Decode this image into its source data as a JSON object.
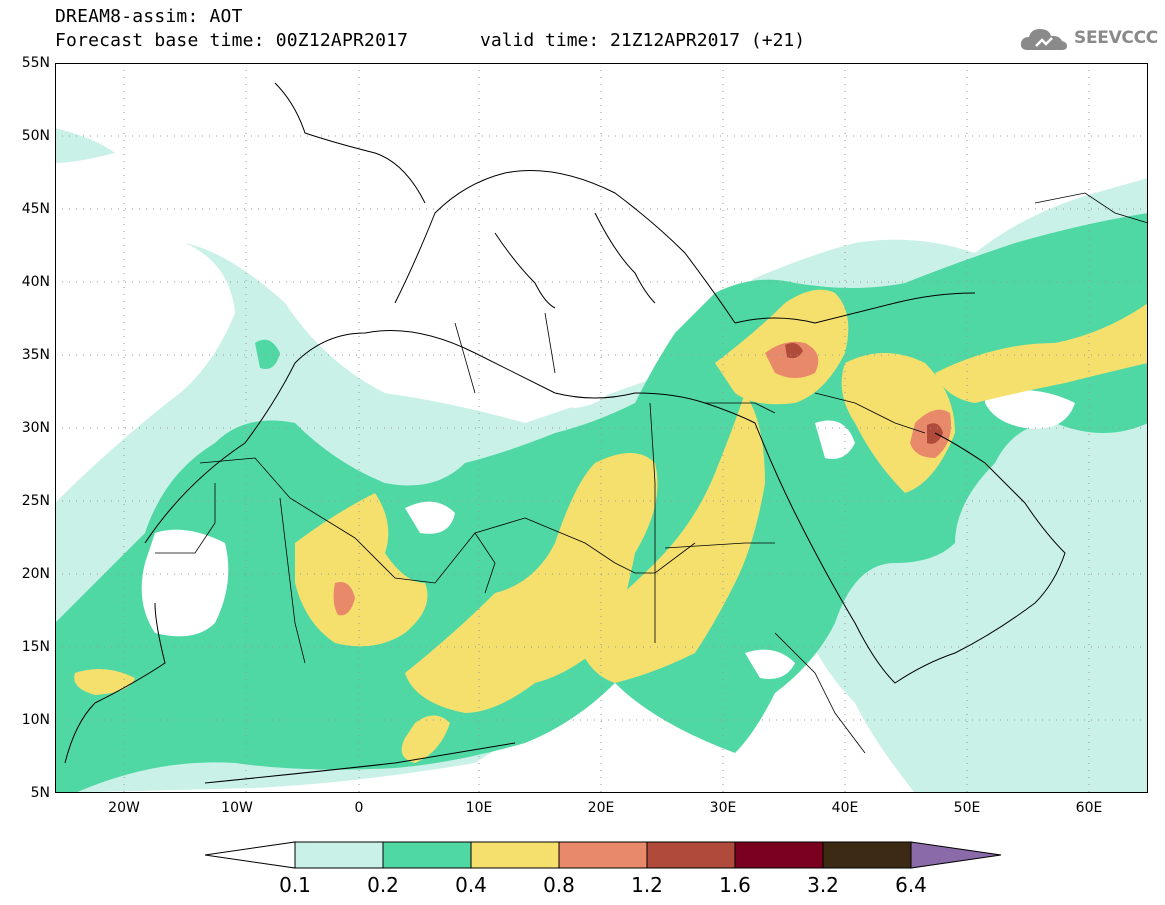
{
  "header": {
    "title_line1": "DREAM8-assim: AOT",
    "title_line2": "Forecast base time: 00Z12APR2017",
    "valid_time": "valid time: 21Z12APR2017 (+21)",
    "logo_text": "SEEVCCC",
    "logo_icon": "cloud-icon"
  },
  "map": {
    "projection": "lat-lon",
    "lon_range": [
      -25,
      65
    ],
    "lat_range": [
      5,
      55
    ],
    "grid": "dotted",
    "lat_labels": [
      "55N",
      "50N",
      "45N",
      "40N",
      "35N",
      "30N",
      "25N",
      "20N",
      "15N",
      "10N",
      "5N"
    ],
    "lon_labels": [
      "20W",
      "10W",
      "0",
      "10E",
      "20E",
      "30E",
      "40E",
      "50E",
      "60E"
    ]
  },
  "colorbar": {
    "labels": [
      "0.1",
      "0.2",
      "0.4",
      "0.8",
      "1.2",
      "1.6",
      "3.2",
      "6.4"
    ],
    "colors": [
      "#ffffff",
      "#c9f1e8",
      "#4fd8a4",
      "#f5e06e",
      "#e8896a",
      "#b04a3a",
      "#7a0020",
      "#3c2a14",
      "#8a6aa8"
    ]
  }
}
